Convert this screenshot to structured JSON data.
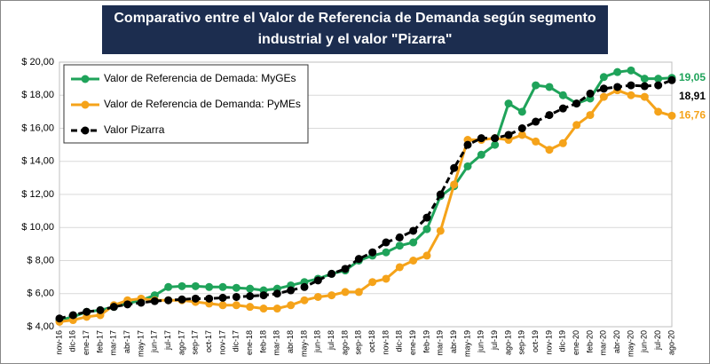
{
  "chart_data": {
    "type": "line",
    "title": [
      "Comparativo entre el Valor de Referencia de Demanda según segmento",
      "industrial y el valor \"Pizarra\""
    ],
    "categories": [
      "nov-16",
      "dic-16",
      "ene-17",
      "feb-17",
      "mar-17",
      "abr-17",
      "may-17",
      "jun-17",
      "jul-17",
      "ago-17",
      "sep-17",
      "oct-17",
      "nov-17",
      "dic-17",
      "ene-18",
      "feb-18",
      "mar-18",
      "abr-18",
      "may-18",
      "jun-18",
      "jul-18",
      "ago-18",
      "sep-18",
      "oct-18",
      "nov-18",
      "dic-18",
      "ene-19",
      "feb-19",
      "mar-19",
      "abr-19",
      "may-19",
      "jun-19",
      "jul-19",
      "ago-19",
      "sep-19",
      "oct-19",
      "nov-19",
      "dic-19",
      "ene-20",
      "feb-20",
      "mar-20",
      "abr-20",
      "may-20",
      "jun-20",
      "jul-20",
      "ago-20"
    ],
    "series": [
      {
        "name": "Valor de Referencia de Demada: MyGEs",
        "color": "#1fa35a",
        "dashed": false,
        "values": [
          4.4,
          4.6,
          4.9,
          5.0,
          5.2,
          5.4,
          5.6,
          5.9,
          6.4,
          6.45,
          6.45,
          6.4,
          6.4,
          6.35,
          6.3,
          6.2,
          6.3,
          6.5,
          6.7,
          6.9,
          7.2,
          7.4,
          8.0,
          8.3,
          8.5,
          8.9,
          9.1,
          9.9,
          11.9,
          12.5,
          13.7,
          14.4,
          15.0,
          17.5,
          17.0,
          18.6,
          18.5,
          18.0,
          17.5,
          17.8,
          19.1,
          19.4,
          19.5,
          19.0,
          19.0,
          19.05
        ],
        "value_labels": [
          null,
          null,
          null,
          null,
          null,
          null,
          null,
          null,
          null,
          null,
          null,
          null,
          null,
          null,
          null,
          null,
          null,
          null,
          null,
          null,
          null,
          null,
          null,
          null,
          null,
          null,
          null,
          null,
          null,
          null,
          null,
          null,
          null,
          null,
          null,
          null,
          null,
          null,
          null,
          null,
          null,
          null,
          null,
          null,
          null,
          "19,05"
        ]
      },
      {
        "name": "Valor de Referencia de Demanda: PyMEs",
        "color": "#f5a31a",
        "dashed": false,
        "values": [
          4.3,
          4.4,
          4.6,
          4.7,
          5.3,
          5.6,
          5.7,
          5.6,
          5.6,
          5.6,
          5.5,
          5.4,
          5.3,
          5.3,
          5.2,
          5.1,
          5.1,
          5.3,
          5.6,
          5.8,
          5.9,
          6.1,
          6.1,
          6.7,
          6.9,
          7.6,
          8.0,
          8.3,
          9.8,
          12.6,
          15.3,
          15.3,
          15.4,
          15.3,
          15.6,
          15.2,
          14.7,
          15.1,
          16.2,
          16.8,
          17.9,
          18.3,
          18.0,
          17.9,
          17.0,
          16.76
        ],
        "value_labels": [
          null,
          null,
          null,
          null,
          null,
          null,
          null,
          null,
          null,
          null,
          null,
          null,
          null,
          null,
          null,
          null,
          null,
          null,
          null,
          null,
          null,
          null,
          null,
          null,
          null,
          null,
          null,
          null,
          null,
          null,
          null,
          null,
          null,
          null,
          null,
          null,
          null,
          null,
          null,
          null,
          null,
          null,
          null,
          null,
          null,
          "16,76"
        ]
      },
      {
        "name": "Valor Pizarra",
        "color": "#000000",
        "dashed": true,
        "values": [
          4.5,
          4.7,
          4.9,
          5.0,
          5.2,
          5.35,
          5.45,
          5.55,
          5.6,
          5.65,
          5.7,
          5.7,
          5.75,
          5.8,
          5.85,
          5.9,
          6.0,
          6.2,
          6.4,
          6.8,
          7.2,
          7.5,
          8.1,
          8.5,
          9.1,
          9.4,
          9.8,
          10.6,
          12.0,
          13.6,
          15.0,
          15.4,
          15.4,
          15.6,
          16.0,
          16.4,
          16.8,
          17.2,
          17.5,
          18.1,
          18.4,
          18.5,
          18.6,
          18.55,
          18.6,
          18.91
        ],
        "value_labels": [
          null,
          null,
          null,
          null,
          null,
          null,
          null,
          null,
          null,
          null,
          null,
          null,
          null,
          null,
          null,
          null,
          null,
          null,
          null,
          null,
          null,
          null,
          null,
          null,
          null,
          null,
          null,
          null,
          null,
          null,
          null,
          null,
          null,
          null,
          null,
          null,
          null,
          null,
          null,
          null,
          null,
          null,
          null,
          null,
          null,
          "18,91"
        ]
      }
    ],
    "ylim": [
      4,
      20
    ],
    "yticks": [
      {
        "value": 4,
        "label": "$ 4,00"
      },
      {
        "value": 6,
        "label": "$ 6,00"
      },
      {
        "value": 8,
        "label": "$ 8,00"
      },
      {
        "value": 10,
        "label": "$ 10,00"
      },
      {
        "value": 12,
        "label": "$ 12,00"
      },
      {
        "value": 14,
        "label": "$ 14,00"
      },
      {
        "value": 16,
        "label": "$ 16,00"
      },
      {
        "value": 18,
        "label": "$ 18,00"
      },
      {
        "value": 20,
        "label": "$ 20,00"
      }
    ],
    "grid": true,
    "legend": "upper left"
  }
}
